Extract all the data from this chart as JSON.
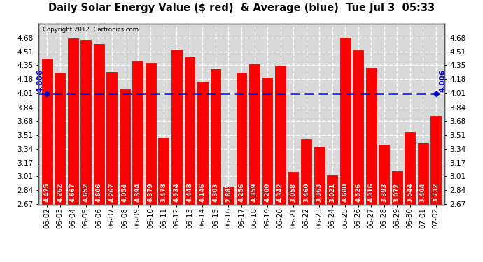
{
  "title": "Daily Solar Energy Value ($ red)  & Average (blue)  Tue Jul 3  05:33",
  "copyright": "Copyright 2012  Cartronics.com",
  "average": 4.006,
  "categories": [
    "06-02",
    "06-03",
    "06-04",
    "06-05",
    "06-06",
    "06-07",
    "06-08",
    "06-09",
    "06-10",
    "06-11",
    "06-12",
    "06-13",
    "06-14",
    "06-15",
    "06-16",
    "06-17",
    "06-18",
    "06-19",
    "06-20",
    "06-21",
    "06-22",
    "06-23",
    "06-24",
    "06-25",
    "06-26",
    "06-27",
    "06-28",
    "06-29",
    "06-30",
    "07-01",
    "07-02"
  ],
  "values": [
    4.425,
    4.262,
    4.667,
    4.652,
    4.606,
    4.267,
    4.054,
    4.394,
    4.379,
    3.478,
    4.534,
    4.448,
    4.146,
    4.303,
    2.885,
    4.256,
    4.359,
    4.2,
    4.342,
    3.058,
    3.46,
    3.363,
    3.021,
    4.68,
    4.526,
    4.316,
    3.393,
    3.072,
    3.544,
    3.404,
    3.732
  ],
  "bar_color": "#ff0000",
  "bar_edge_color": "#bb0000",
  "avg_line_color": "#0000cc",
  "ymin": 2.67,
  "ymax": 4.85,
  "yticks": [
    2.67,
    2.84,
    3.01,
    3.17,
    3.34,
    3.51,
    3.68,
    3.84,
    4.01,
    4.18,
    4.35,
    4.51,
    4.68
  ],
  "bg_color": "#ffffff",
  "plot_bg_color": "#d8d8d8",
  "grid_color": "#ffffff",
  "bar_text_color": "#ffffff",
  "title_fontsize": 10.5,
  "tick_fontsize": 7.5,
  "value_fontsize": 6.2
}
